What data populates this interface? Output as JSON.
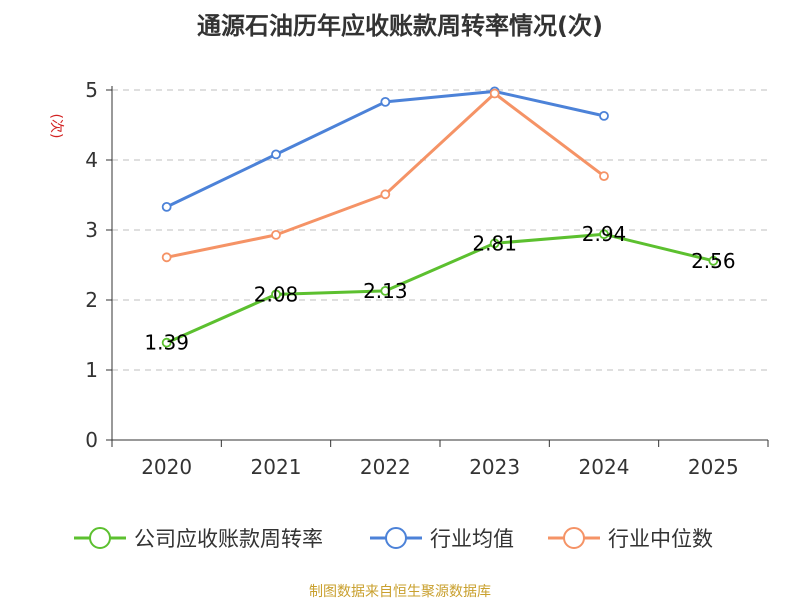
{
  "chart_data": {
    "type": "line",
    "title": "通源石油历年应收账款周转率情况(次)",
    "ylabel": "(次)",
    "xlabel": "",
    "categories": [
      "2020",
      "2021",
      "2022",
      "2023",
      "2024",
      "2025"
    ],
    "y_ticks": [
      "0",
      "1",
      "2",
      "3",
      "4",
      "5"
    ],
    "ylim": [
      0,
      5
    ],
    "grid": true,
    "legend_position": "bottom",
    "series": [
      {
        "name": "公司应收账款周转率",
        "color": "#5cc02f",
        "values": [
          1.39,
          2.08,
          2.13,
          2.81,
          2.94,
          2.56
        ],
        "labels": [
          "1.39",
          "2.08",
          "2.13",
          "2.81",
          "2.94",
          "2.56"
        ]
      },
      {
        "name": "行业均值",
        "color": "#4c82d8",
        "values": [
          3.33,
          4.08,
          4.83,
          4.98,
          4.63,
          null
        ]
      },
      {
        "name": "行业中位数",
        "color": "#f59366",
        "values": [
          2.61,
          2.93,
          3.51,
          4.95,
          3.77,
          null
        ]
      }
    ],
    "source": "制图数据来自恒生聚源数据库",
    "colors": {
      "ylabel": "#d22222",
      "source": "#c9a02e",
      "grid": "#cccccc",
      "axis": "#333333"
    }
  }
}
